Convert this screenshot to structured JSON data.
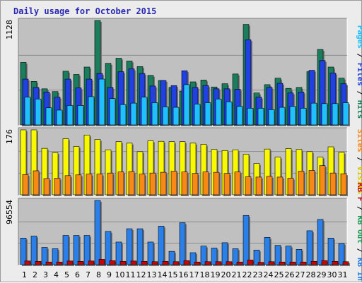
{
  "chart_data": {
    "type": "bar",
    "title": "Daily usage for October 2015",
    "categories": [
      "1",
      "2",
      "3",
      "4",
      "5",
      "6",
      "7",
      "8",
      "9",
      "10",
      "11",
      "12",
      "13",
      "14",
      "15",
      "16",
      "17",
      "18",
      "19",
      "20",
      "21",
      "22",
      "23",
      "24",
      "25",
      "26",
      "27",
      "28",
      "29",
      "30",
      "31"
    ],
    "weekend_days": [
      "3",
      "4",
      "10",
      "11",
      "17",
      "18",
      "24",
      "25",
      "31"
    ],
    "panels": [
      {
        "max_label": "1128",
        "max": 1128,
        "series": [
          {
            "name": "Hits",
            "color": "#1a7e5c",
            "values": [
              675,
              470,
              390,
              360,
              580,
              545,
              625,
              1128,
              665,
              720,
              690,
              630,
              535,
              480,
              405,
              365,
              465,
              485,
              410,
              445,
              550,
              1085,
              345,
              435,
              505,
              395,
              405,
              575,
              815,
              625,
              505
            ]
          },
          {
            "name": "Files",
            "color": "#2040e0",
            "values": [
              495,
              405,
              355,
              300,
              495,
              400,
              495,
              555,
              405,
              575,
              605,
              555,
              420,
              480,
              425,
              585,
              405,
              425,
              390,
              390,
              385,
              920,
              300,
              405,
              450,
              345,
              355,
              590,
              695,
              560,
              445
            ]
          },
          {
            "name": "Pages",
            "color": "#20c0ff",
            "values": [
              300,
              280,
              185,
              160,
              210,
              210,
              305,
              495,
              285,
              220,
              235,
              300,
              240,
              195,
              190,
              435,
              225,
              240,
              280,
              250,
              200,
              180,
              180,
              165,
              190,
              200,
              180,
              235,
              230,
              230,
              240
            ]
          }
        ]
      },
      {
        "max_label": "176",
        "max": 176,
        "series": [
          {
            "name": "Visits",
            "color": "#f8f800",
            "values": [
              176,
              176,
              126,
              114,
              152,
              131,
              162,
              150,
              122,
              144,
              140,
              117,
              146,
              145,
              144,
              144,
              140,
              137,
              123,
              120,
              122,
              110,
              85,
              124,
              102,
              125,
              123,
              117,
              102,
              130,
              115
            ]
          },
          {
            "name": "Sites",
            "color": "#f88818",
            "values": [
              55,
              65,
              44,
              45,
              52,
              54,
              56,
              56,
              59,
              62,
              63,
              56,
              59,
              61,
              64,
              62,
              58,
              62,
              61,
              58,
              62,
              49,
              48,
              50,
              48,
              45,
              64,
              66,
              79,
              59,
              57
            ]
          }
        ]
      },
      {
        "max_label": "96554",
        "max": 96554,
        "series": [
          {
            "name": "KB In",
            "color": "#2a80e8",
            "values": [
              40000,
              43000,
              26000,
              24000,
              44000,
              44000,
              44000,
              96554,
              50000,
              34000,
              54000,
              54000,
              34000,
              58000,
              20000,
              63000,
              18000,
              28000,
              25000,
              33000,
              24000,
              74000,
              22000,
              41000,
              29000,
              28000,
              23000,
              51000,
              68000,
              40000,
              32000
            ]
          },
          {
            "name": "KB Out",
            "color": "#1a9a54",
            "values": [
              0,
              0,
              0,
              0,
              0,
              0,
              0,
              0,
              0,
              0,
              0,
              0,
              0,
              0,
              0,
              0,
              0,
              0,
              0,
              0,
              0,
              0,
              0,
              0,
              0,
              0,
              0,
              0,
              0,
              0,
              0
            ]
          },
          {
            "name": "KB F",
            "color": "#c80000",
            "values": [
              5500,
              5000,
              4000,
              4000,
              5500,
              5000,
              5500,
              8000,
              6000,
              5000,
              5500,
              5000,
              4500,
              5000,
              4500,
              6000,
              4000,
              4500,
              4500,
              4500,
              4000,
              7000,
              3500,
              4500,
              4000,
              4000,
              4000,
              5000,
              6000,
              5000,
              4500
            ]
          }
        ]
      }
    ],
    "right_labels": [
      [
        {
          "text": "Pages",
          "color": "#20c0ff"
        },
        {
          "text": " / ",
          "color": "#000000"
        },
        {
          "text": "Files",
          "color": "#2040e0"
        },
        {
          "text": " / ",
          "color": "#000000"
        },
        {
          "text": "Hits",
          "color": "#1a7e5c"
        }
      ],
      [
        {
          "text": "Sites",
          "color": "#f88818"
        },
        {
          "text": " / ",
          "color": "#000000"
        },
        {
          "text": "Visits",
          "color": "#d8c800"
        }
      ],
      [
        {
          "text": "KB F",
          "color": "#c80000"
        },
        {
          "text": " / ",
          "color": "#000000"
        },
        {
          "text": "KB Out",
          "color": "#1a9a54"
        },
        {
          "text": " / ",
          "color": "#000000"
        },
        {
          "text": "KB In",
          "color": "#2a80e8"
        }
      ]
    ]
  }
}
